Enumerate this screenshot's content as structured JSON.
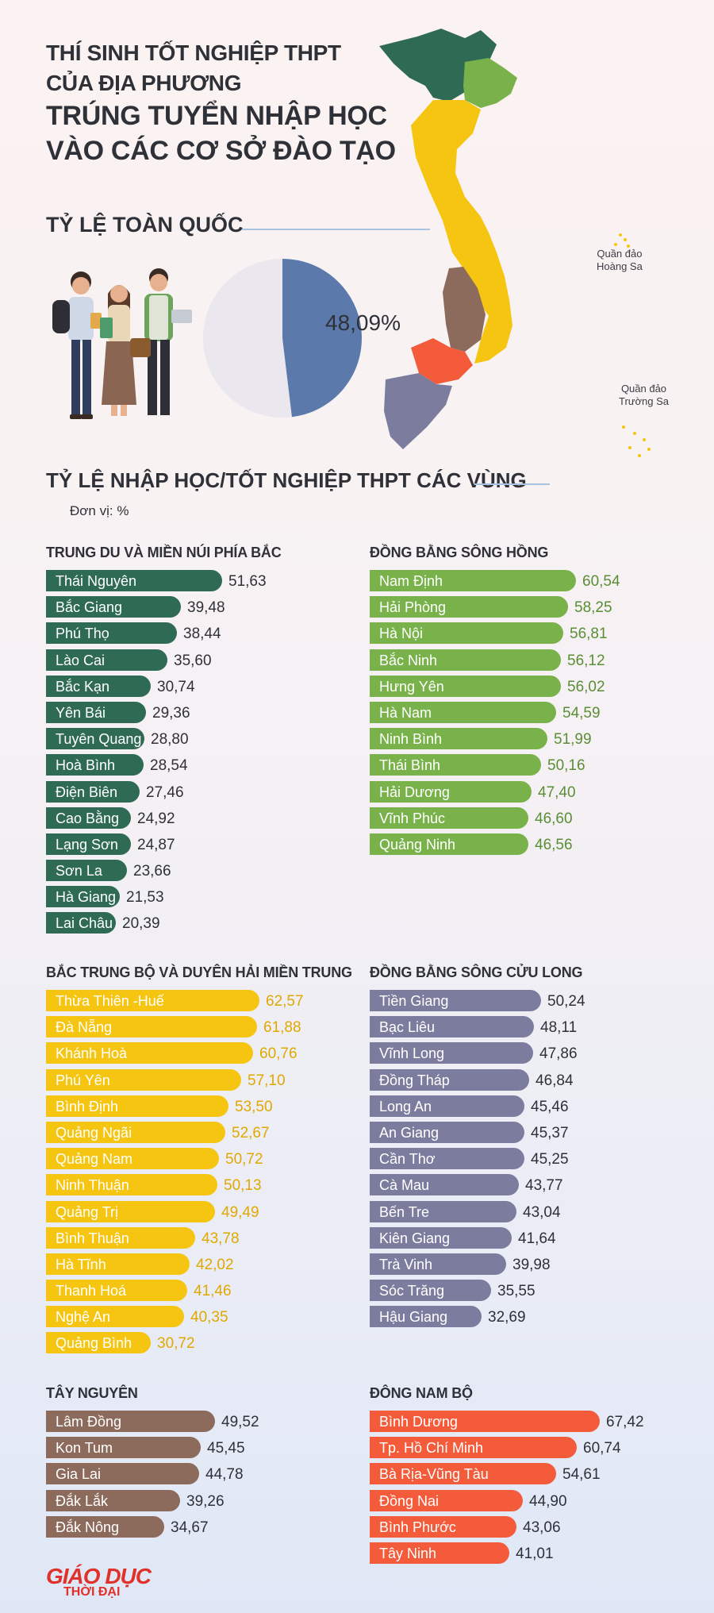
{
  "header": {
    "title_line1": "THÍ SINH TỐT NGHIỆP THPT",
    "title_line2": "CỦA ĐỊA PHƯƠNG",
    "title_line3": "TRÚNG TUYỂN NHẬP HỌC",
    "title_line4": "VÀO CÁC CƠ SỞ ĐÀO TẠO"
  },
  "national": {
    "label": "TỶ LỆ TOÀN QUỐC",
    "value_text": "48,09%",
    "value": 48.09,
    "colors": {
      "value": "#5b7aab",
      "rest": "#eae7ee"
    }
  },
  "map": {
    "caption_hoang_sa_1": "Quần đảo",
    "caption_hoang_sa_2": "Hoàng Sa",
    "caption_truong_sa_1": "Quần đảo",
    "caption_truong_sa_2": "Trường Sa"
  },
  "regions_section": {
    "label": "TỶ LỆ NHẬP HỌC/TỐT NGHIỆP THPT CÁC VÙNG",
    "unit": "Đơn vị: %"
  },
  "chart_data": [
    {
      "type": "bar",
      "title": "TRUNG DU VÀ MIỀN NÚI PHÍA BẮC",
      "color": "#2f6b54",
      "value_color": "#2f3138",
      "categories": [
        "Thái Nguyên",
        "Bắc Giang",
        "Phú Thọ",
        "Lào Cai",
        "Bắc Kạn",
        "Yên Bái",
        "Tuyên Quang",
        "Hoà Bình",
        "Điện Biên",
        "Cao Bằng",
        "Lạng Sơn",
        "Sơn La",
        "Hà Giang",
        "Lai Châu"
      ],
      "values": [
        51.63,
        39.48,
        38.44,
        35.6,
        30.74,
        29.36,
        28.8,
        28.54,
        27.46,
        24.92,
        24.87,
        23.66,
        21.53,
        20.39
      ],
      "labels": [
        "51,63",
        "39,48",
        "38,44",
        "35,60",
        "30,74",
        "29,36",
        "28,80",
        "28,54",
        "27,46",
        "24,92",
        "24,87",
        "23,66",
        "21,53",
        "20,39"
      ]
    },
    {
      "type": "bar",
      "title": "ĐỒNG BẰNG SÔNG HỒNG",
      "color": "#79b24a",
      "value_color": "#5a8e36",
      "categories": [
        "Nam Định",
        "Hải Phòng",
        "Hà Nội",
        "Bắc Ninh",
        "Hưng Yên",
        "Hà Nam",
        "Ninh Bình",
        "Thái Bình",
        "Hải Dương",
        "Vĩnh Phúc",
        "Quảng Ninh"
      ],
      "values": [
        60.54,
        58.25,
        56.81,
        56.12,
        56.02,
        54.59,
        51.99,
        50.16,
        47.4,
        46.6,
        46.56
      ],
      "labels": [
        "60,54",
        "58,25",
        "56,81",
        "56,12",
        "56,02",
        "54,59",
        "51,99",
        "50,16",
        "47,40",
        "46,60",
        "46,56"
      ]
    },
    {
      "type": "bar",
      "title": "BẮC TRUNG BỘ VÀ DUYÊN HẢI MIỀN TRUNG",
      "color": "#f6c512",
      "value_color": "#e0a800",
      "categories": [
        "Thừa Thiên -Huế",
        "Đà Nẵng",
        "Khánh Hoà",
        "Phú Yên",
        "Bình Định",
        "Quảng Ngãi",
        "Quảng Nam",
        "Ninh Thuận",
        "Quảng Trị",
        "Bình Thuận",
        "Hà Tĩnh",
        "Thanh Hoá",
        "Nghệ An",
        "Quảng Bình"
      ],
      "values": [
        62.57,
        61.88,
        60.76,
        57.1,
        53.5,
        52.67,
        50.72,
        50.13,
        49.49,
        43.78,
        42.02,
        41.46,
        40.35,
        30.72
      ],
      "labels": [
        "62,57",
        "61,88",
        "60,76",
        "57,10",
        "53,50",
        "52,67",
        "50,72",
        "50,13",
        "49,49",
        "43,78",
        "42,02",
        "41,46",
        "40,35",
        "30,72"
      ]
    },
    {
      "type": "bar",
      "title": "ĐỒNG BẰNG SÔNG CỬU LONG",
      "color": "#7c7c9e",
      "value_color": "#2f3138",
      "categories": [
        "Tiền Giang",
        "Bạc Liêu",
        "Vĩnh Long",
        "Đồng Tháp",
        "Long An",
        "An Giang",
        "Cần Thơ",
        "Cà Mau",
        "Bến Tre",
        "Kiên Giang",
        "Trà Vinh",
        "Sóc Trăng",
        "Hậu Giang"
      ],
      "values": [
        50.24,
        48.11,
        47.86,
        46.84,
        45.46,
        45.37,
        45.25,
        43.77,
        43.04,
        41.64,
        39.98,
        35.55,
        32.69
      ],
      "labels": [
        "50,24",
        "48,11",
        "47,86",
        "46,84",
        "45,46",
        "45,37",
        "45,25",
        "43,77",
        "43,04",
        "41,64",
        "39,98",
        "35,55",
        "32,69"
      ]
    },
    {
      "type": "bar",
      "title": "TÂY NGUYÊN",
      "color": "#8c6b5d",
      "value_color": "#2f3138",
      "categories": [
        "Lâm Đồng",
        "Kon Tum",
        "Gia Lai",
        "Đắk Lắk",
        "Đắk Nông"
      ],
      "values": [
        49.52,
        45.45,
        44.78,
        39.26,
        34.67
      ],
      "labels": [
        "49,52",
        "45,45",
        "44,78",
        "39,26",
        "34,67"
      ]
    },
    {
      "type": "bar",
      "title": "ĐÔNG NAM BỘ",
      "color": "#f35b3b",
      "value_color": "#2f3138",
      "categories": [
        "Bình Dương",
        "Tp. Hồ Chí Minh",
        "Bà Rịa-Vũng Tàu",
        "Đồng Nai",
        "Bình Phước",
        "Tây Ninh"
      ],
      "values": [
        67.42,
        60.74,
        54.61,
        44.9,
        43.06,
        41.01
      ],
      "labels": [
        "67,42",
        "60,74",
        "54,61",
        "44,90",
        "43,06",
        "41,01"
      ]
    }
  ],
  "logo": {
    "top": "GIÁO DỤC",
    "bottom": "THỜI ĐẠI"
  }
}
